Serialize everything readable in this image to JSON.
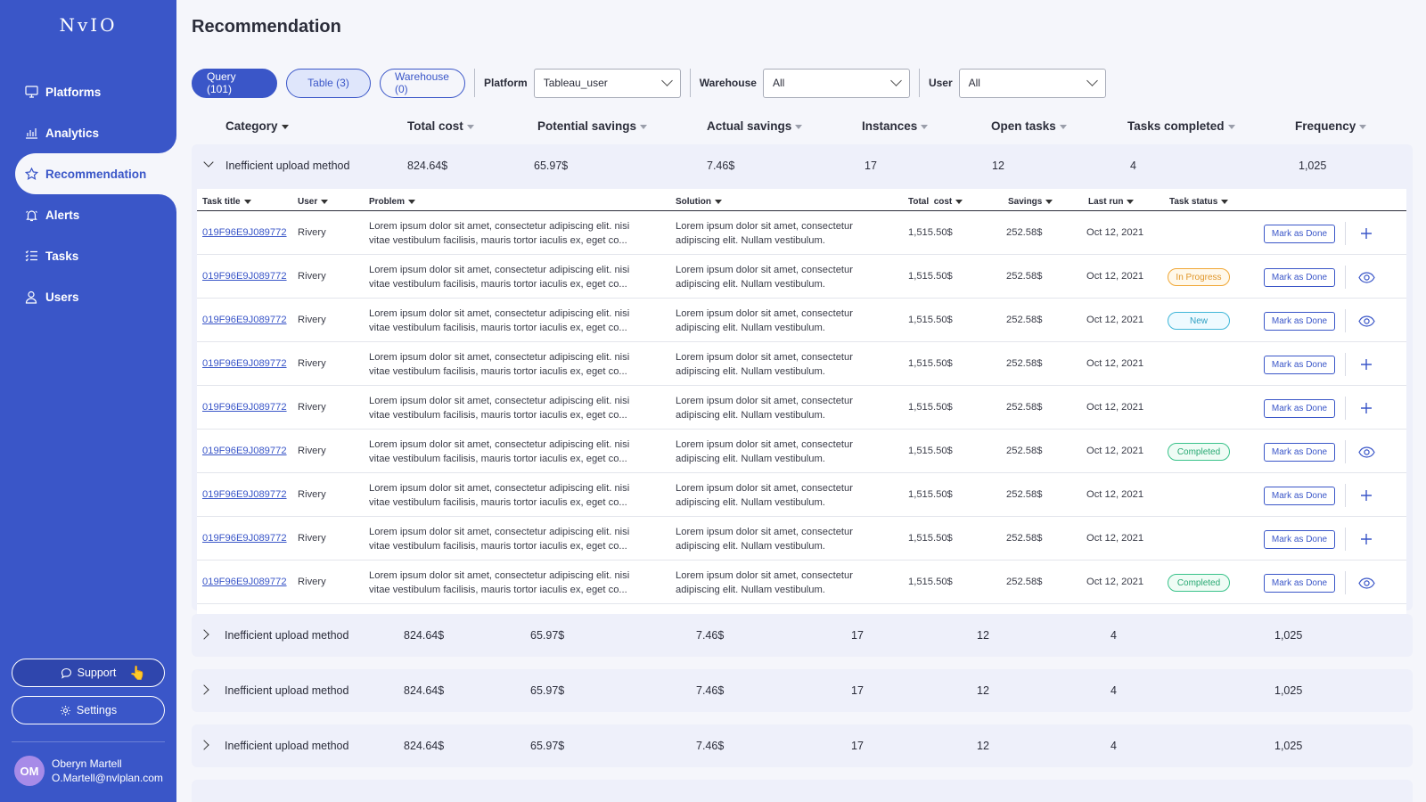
{
  "app": {
    "logo": "NvIO"
  },
  "sidebar": {
    "items": [
      {
        "label": "Platforms",
        "icon": "monitor-icon"
      },
      {
        "label": "Analytics",
        "icon": "bar-chart-icon"
      },
      {
        "label": "Recommendation",
        "icon": "star-icon",
        "active": true
      },
      {
        "label": "Alerts",
        "icon": "bell-icon"
      },
      {
        "label": "Tasks",
        "icon": "list-icon"
      },
      {
        "label": "Users",
        "icon": "user-icon"
      }
    ],
    "support_label": "Support",
    "settings_label": "Settings",
    "user": {
      "initials": "OM",
      "name": "Oberyn Martell",
      "email": "O.Martell@nvlplan.com"
    }
  },
  "page": {
    "title": "Recommendation"
  },
  "filters": {
    "tabs": [
      "Query (101)",
      "Table (3)",
      "Warehouse (0)"
    ],
    "platform": {
      "label": "Platform",
      "value": "Tableau_user"
    },
    "warehouse": {
      "label": "Warehouse",
      "value": "All"
    },
    "user": {
      "label": "User",
      "value": "All"
    }
  },
  "columns": [
    "Category",
    "Total cost",
    "Potential savings",
    "Actual savings",
    "Instances",
    "Open tasks",
    "Tasks completed",
    "Frequency"
  ],
  "groups": [
    {
      "category": "Inefficient upload method",
      "total_cost": "824.64$",
      "potential_savings": "65.97$",
      "actual_savings": "7.46$",
      "instances": "17",
      "open_tasks": "12",
      "tasks_completed": "4",
      "frequency": "1,025",
      "expanded": true
    },
    {
      "category": "Inefficient upload method",
      "total_cost": "824.64$",
      "potential_savings": "65.97$",
      "actual_savings": "7.46$",
      "instances": "17",
      "open_tasks": "12",
      "tasks_completed": "4",
      "frequency": "1,025",
      "expanded": false
    },
    {
      "category": "Inefficient upload method",
      "total_cost": "824.64$",
      "potential_savings": "65.97$",
      "actual_savings": "7.46$",
      "instances": "17",
      "open_tasks": "12",
      "tasks_completed": "4",
      "frequency": "1,025",
      "expanded": false
    },
    {
      "category": "Inefficient upload method",
      "total_cost": "824.64$",
      "potential_savings": "65.97$",
      "actual_savings": "7.46$",
      "instances": "17",
      "open_tasks": "12",
      "tasks_completed": "4",
      "frequency": "1,025",
      "expanded": false
    }
  ],
  "subtable": {
    "columns": [
      "Task title",
      "User",
      "Problem",
      "Solution",
      "Total  cost",
      "Savings",
      "Last run",
      "Task status"
    ],
    "mark_done_label": "Mark as Done",
    "rows": [
      {
        "task": "019F96E9J089772",
        "user": "Rivery",
        "problem1": "Lorem ipsum dolor sit amet, consectetur adipiscing elit. nisi",
        "problem2": "vitae vestibulum facilisis, mauris tortor iaculis ex, eget co...",
        "solution1": "Lorem ipsum dolor sit amet, consectetur",
        "solution2": "adipiscing elit. Nullam vestibulum.",
        "total": "1,515.50$",
        "savings": "252.58$",
        "last_run": "Oct 12, 2021",
        "status": "",
        "status_kind": "",
        "action": "plus-icon"
      },
      {
        "task": "019F96E9J089772",
        "user": "Rivery",
        "problem1": "Lorem ipsum dolor sit amet, consectetur adipiscing elit. nisi",
        "problem2": "vitae vestibulum facilisis, mauris tortor iaculis ex, eget co...",
        "solution1": "Lorem ipsum dolor sit amet, consectetur",
        "solution2": "adipiscing elit. Nullam vestibulum.",
        "total": "1,515.50$",
        "savings": "252.58$",
        "last_run": "Oct 12, 2021",
        "status": "In Progress",
        "status_kind": "progress",
        "action": "eye-icon"
      },
      {
        "task": "019F96E9J089772",
        "user": "Rivery",
        "problem1": "Lorem ipsum dolor sit amet, consectetur adipiscing elit. nisi",
        "problem2": "vitae vestibulum facilisis, mauris tortor iaculis ex, eget co...",
        "solution1": "Lorem ipsum dolor sit amet, consectetur",
        "solution2": "adipiscing elit. Nullam vestibulum.",
        "total": "1,515.50$",
        "savings": "252.58$",
        "last_run": "Oct 12, 2021",
        "status": "New",
        "status_kind": "new",
        "action": "eye-icon"
      },
      {
        "task": "019F96E9J089772",
        "user": "Rivery",
        "problem1": "Lorem ipsum dolor sit amet, consectetur adipiscing elit. nisi",
        "problem2": "vitae vestibulum facilisis, mauris tortor iaculis ex, eget co...",
        "solution1": "Lorem ipsum dolor sit amet, consectetur",
        "solution2": "adipiscing elit. Nullam vestibulum.",
        "total": "1,515.50$",
        "savings": "252.58$",
        "last_run": "Oct 12, 2021",
        "status": "",
        "status_kind": "",
        "action": "plus-icon"
      },
      {
        "task": "019F96E9J089772",
        "user": "Rivery",
        "problem1": "Lorem ipsum dolor sit amet, consectetur adipiscing elit. nisi",
        "problem2": "vitae vestibulum facilisis, mauris tortor iaculis ex, eget co...",
        "solution1": "Lorem ipsum dolor sit amet, consectetur",
        "solution2": "adipiscing elit. Nullam vestibulum.",
        "total": "1,515.50$",
        "savings": "252.58$",
        "last_run": "Oct 12, 2021",
        "status": "",
        "status_kind": "",
        "action": "plus-icon"
      },
      {
        "task": "019F96E9J089772",
        "user": "Rivery",
        "problem1": "Lorem ipsum dolor sit amet, consectetur adipiscing elit. nisi",
        "problem2": "vitae vestibulum facilisis, mauris tortor iaculis ex, eget co...",
        "solution1": "Lorem ipsum dolor sit amet, consectetur",
        "solution2": "adipiscing elit. Nullam vestibulum.",
        "total": "1,515.50$",
        "savings": "252.58$",
        "last_run": "Oct 12, 2021",
        "status": "Completed",
        "status_kind": "completed",
        "action": "eye-icon"
      },
      {
        "task": "019F96E9J089772",
        "user": "Rivery",
        "problem1": "Lorem ipsum dolor sit amet, consectetur adipiscing elit. nisi",
        "problem2": "vitae vestibulum facilisis, mauris tortor iaculis ex, eget co...",
        "solution1": "Lorem ipsum dolor sit amet, consectetur",
        "solution2": "adipiscing elit. Nullam vestibulum.",
        "total": "1,515.50$",
        "savings": "252.58$",
        "last_run": "Oct 12, 2021",
        "status": "",
        "status_kind": "",
        "action": "plus-icon"
      },
      {
        "task": "019F96E9J089772",
        "user": "Rivery",
        "problem1": "Lorem ipsum dolor sit amet, consectetur adipiscing elit. nisi",
        "problem2": "vitae vestibulum facilisis, mauris tortor iaculis ex, eget co...",
        "solution1": "Lorem ipsum dolor sit amet, consectetur",
        "solution2": "adipiscing elit. Nullam vestibulum.",
        "total": "1,515.50$",
        "savings": "252.58$",
        "last_run": "Oct 12, 2021",
        "status": "",
        "status_kind": "",
        "action": "plus-icon"
      },
      {
        "task": "019F96E9J089772",
        "user": "Rivery",
        "problem1": "Lorem ipsum dolor sit amet, consectetur adipiscing elit. nisi",
        "problem2": "vitae vestibulum facilisis, mauris tortor iaculis ex, eget co...",
        "solution1": "Lorem ipsum dolor sit amet, consectetur",
        "solution2": "adipiscing elit. Nullam vestibulum.",
        "total": "1,515.50$",
        "savings": "252.58$",
        "last_run": "Oct 12, 2021",
        "status": "Completed",
        "status_kind": "completed",
        "action": "eye-icon"
      }
    ]
  },
  "colors": {
    "brand": "#3a56c8",
    "background": "#f5f6fb",
    "in_progress": "#f0a735",
    "new": "#3fb6d8",
    "completed": "#39c28a"
  }
}
